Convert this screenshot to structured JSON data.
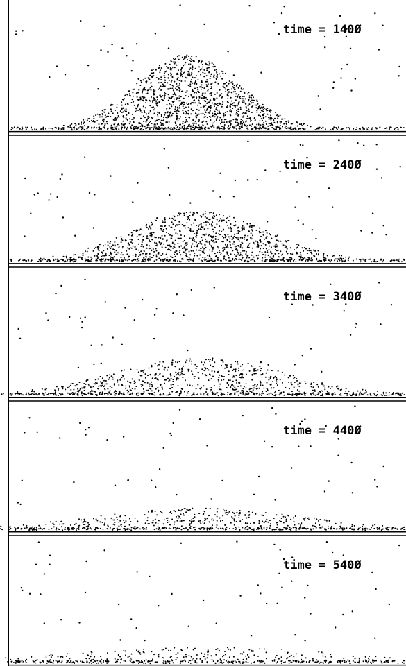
{
  "panels": [
    {
      "label": "time = 140Ø",
      "time": 140,
      "pile": {
        "center": 0.45,
        "spread": 0.13,
        "density": 1.0,
        "top": 0.55
      }
    },
    {
      "label": "time = 240Ø",
      "time": 240,
      "pile": {
        "center": 0.48,
        "spread": 0.17,
        "density": 0.75,
        "top": 0.38
      }
    },
    {
      "label": "time = 340Ø",
      "time": 340,
      "pile": {
        "center": 0.48,
        "spread": 0.21,
        "density": 0.5,
        "top": 0.28
      }
    },
    {
      "label": "time = 440Ø",
      "time": 440,
      "pile": {
        "center": 0.48,
        "spread": 0.26,
        "density": 0.32,
        "top": 0.16
      }
    },
    {
      "label": "time = 540Ø",
      "time": 540,
      "pile": {
        "center": 0.5,
        "spread": 0.34,
        "density": 0.22,
        "top": 0.12
      }
    }
  ],
  "colors": {
    "background": "#ffffff",
    "ink": "#000000"
  }
}
